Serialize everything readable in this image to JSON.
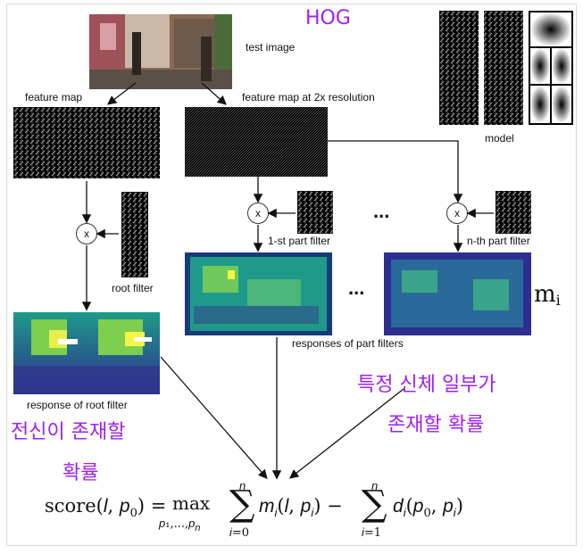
{
  "title": "HOG",
  "labels": {
    "test_image": "test image",
    "feature_map": "feature map",
    "feature_map_2x": "feature map at 2x resolution",
    "model": "model",
    "multiply": "x",
    "root_filter": "root filter",
    "part_filter_1": "1-st part filter",
    "part_filter_n": "n-th part filter",
    "response_root": "response of root filter",
    "response_parts": "responses of part filters",
    "ellipsis": "..."
  },
  "annotations": {
    "m_i": "mi",
    "whole_body_line1": "전신이 존재할",
    "whole_body_line2": "확률",
    "part_line1": "특정 신체 일부가",
    "part_line2": "존재할 확률"
  },
  "formula": "score(l, p0) = max over p1,...,pn of sum_{i=0}^{n} mi(l, pi) − sum_{i=1}^{n} di(p0, pi)",
  "colors": {
    "annotation": "#a020f0",
    "heatmap_low": "#2c2f8f",
    "heatmap_mid": "#1f9a8a",
    "heatmap_high": "#f5f542"
  }
}
